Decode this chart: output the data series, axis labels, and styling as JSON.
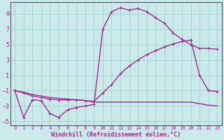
{
  "background_color": "#cce9e9",
  "grid_color": "#aad4d4",
  "line_color": "#9b2d8e",
  "xlabel": "Windchill (Refroidissement éolien,°C)",
  "xlim": [
    -0.5,
    23.5
  ],
  "ylim": [
    -5.5,
    10.5
  ],
  "yticks": [
    -5,
    -3,
    -1,
    1,
    3,
    5,
    7,
    9
  ],
  "xticks": [
    0,
    1,
    2,
    3,
    4,
    5,
    6,
    7,
    8,
    9,
    10,
    11,
    12,
    13,
    14,
    15,
    16,
    17,
    18,
    19,
    20,
    21,
    22,
    23
  ],
  "line1_x": [
    0,
    1,
    2,
    3,
    4,
    5,
    6,
    7,
    8,
    9,
    10,
    11,
    12,
    13,
    14,
    15,
    16,
    17,
    18,
    19,
    20,
    21,
    22,
    23
  ],
  "line1_y": [
    -1.0,
    -4.5,
    -2.2,
    -2.3,
    -4.0,
    -4.5,
    -3.5,
    -3.2,
    -3.0,
    -2.8,
    7.0,
    9.3,
    9.8,
    9.5,
    9.7,
    9.3,
    8.5,
    7.8,
    6.5,
    5.7,
    5.0,
    4.5,
    4.5,
    4.4
  ],
  "line2_x": [
    0,
    1,
    2,
    3,
    4,
    5,
    6,
    7,
    8,
    9,
    10,
    11,
    12,
    13,
    14,
    15,
    16,
    17,
    18,
    19,
    20,
    21,
    22,
    23
  ],
  "line2_y": [
    -1.0,
    -1.3,
    -1.7,
    -1.9,
    -2.1,
    -2.2,
    -2.2,
    -2.2,
    -2.3,
    -2.4,
    -1.3,
    -0.2,
    1.2,
    2.2,
    3.0,
    3.7,
    4.2,
    4.7,
    5.1,
    5.4,
    5.6,
    1.0,
    -1.0,
    -1.1
  ],
  "line3_x": [
    0,
    1,
    2,
    3,
    4,
    5,
    6,
    7,
    8,
    9,
    10,
    11,
    12,
    13,
    14,
    15,
    16,
    17,
    18,
    19,
    20,
    21,
    22,
    23
  ],
  "line3_y": [
    -1.0,
    -1.2,
    -1.5,
    -1.7,
    -1.9,
    -2.0,
    -2.1,
    -2.2,
    -2.3,
    -2.5,
    -2.5,
    -2.5,
    -2.5,
    -2.5,
    -2.5,
    -2.5,
    -2.5,
    -2.5,
    -2.5,
    -2.5,
    -2.5,
    -2.7,
    -2.9,
    -3.0
  ]
}
